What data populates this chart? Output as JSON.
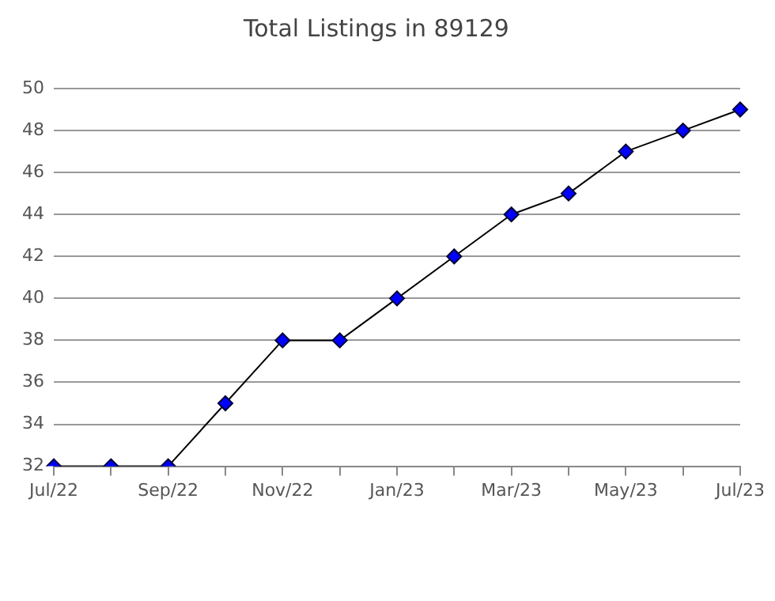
{
  "chart_data": {
    "type": "line",
    "title": "Total Listings in 89129",
    "categories": [
      "Jul/22",
      null,
      "Sep/22",
      null,
      "Nov/22",
      null,
      "Jan/23",
      null,
      "Mar/23",
      null,
      "May/23",
      null,
      "Jul/23"
    ],
    "series": [
      {
        "color": "#0000ff",
        "values": [
          32,
          32,
          32,
          35,
          38,
          38,
          40,
          42,
          44,
          45,
          47,
          48,
          49
        ]
      }
    ],
    "ylim": [
      32,
      50
    ],
    "yticks": [
      32,
      34,
      36,
      38,
      40,
      42,
      44,
      46,
      48,
      50
    ],
    "grid": "y",
    "legend": false,
    "marker": "diamond",
    "line_style": "solid"
  }
}
